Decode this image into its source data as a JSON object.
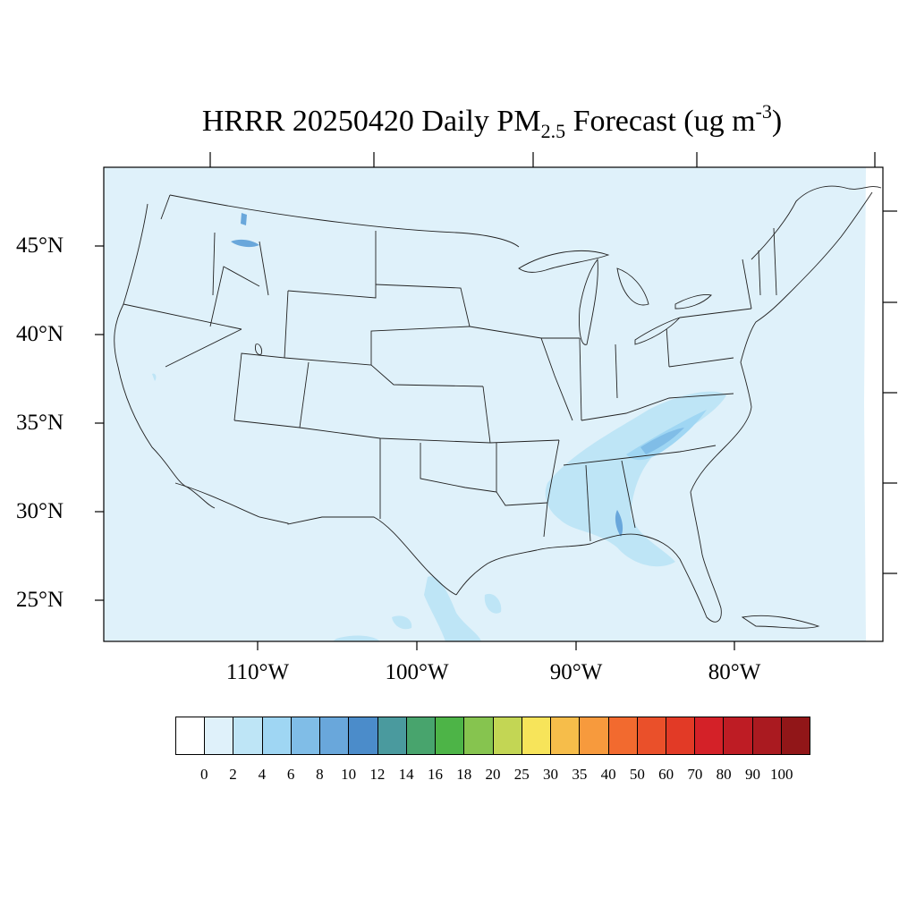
{
  "title": {
    "main": "HRRR 20250420 Daily PM",
    "subscript": "2.5",
    "after": " Forecast (ug m",
    "superscript": "-3",
    "close": ")"
  },
  "lat_labels": [
    "45°N",
    "40°N",
    "35°N",
    "30°N",
    "25°N"
  ],
  "lon_labels": [
    "110°W",
    "100°W",
    "90°W",
    "80°W"
  ],
  "colorbar": {
    "labels": [
      "0",
      "2",
      "4",
      "6",
      "8",
      "10",
      "12",
      "14",
      "16",
      "18",
      "20",
      "25",
      "30",
      "35",
      "40",
      "50",
      "60",
      "70",
      "80",
      "90",
      "100"
    ],
    "colors": [
      "#ffffff",
      "#dff1fa",
      "#bee5f6",
      "#9fd6f3",
      "#80bde7",
      "#69a7db",
      "#4b8cca",
      "#4a9a9e",
      "#48a46d",
      "#4db447",
      "#86c44f",
      "#c3d654",
      "#f7e45a",
      "#f6bd4a",
      "#f79a3d",
      "#f26a2f",
      "#ea502a",
      "#e23a26",
      "#d42128",
      "#be1c24",
      "#aa1a20",
      "#911618"
    ]
  },
  "colors": {
    "background_field": "#dff1fa",
    "light_plume": "#bee5f6",
    "mid_plume": "#9fd6f3",
    "strong_plume": "#69a7db"
  }
}
